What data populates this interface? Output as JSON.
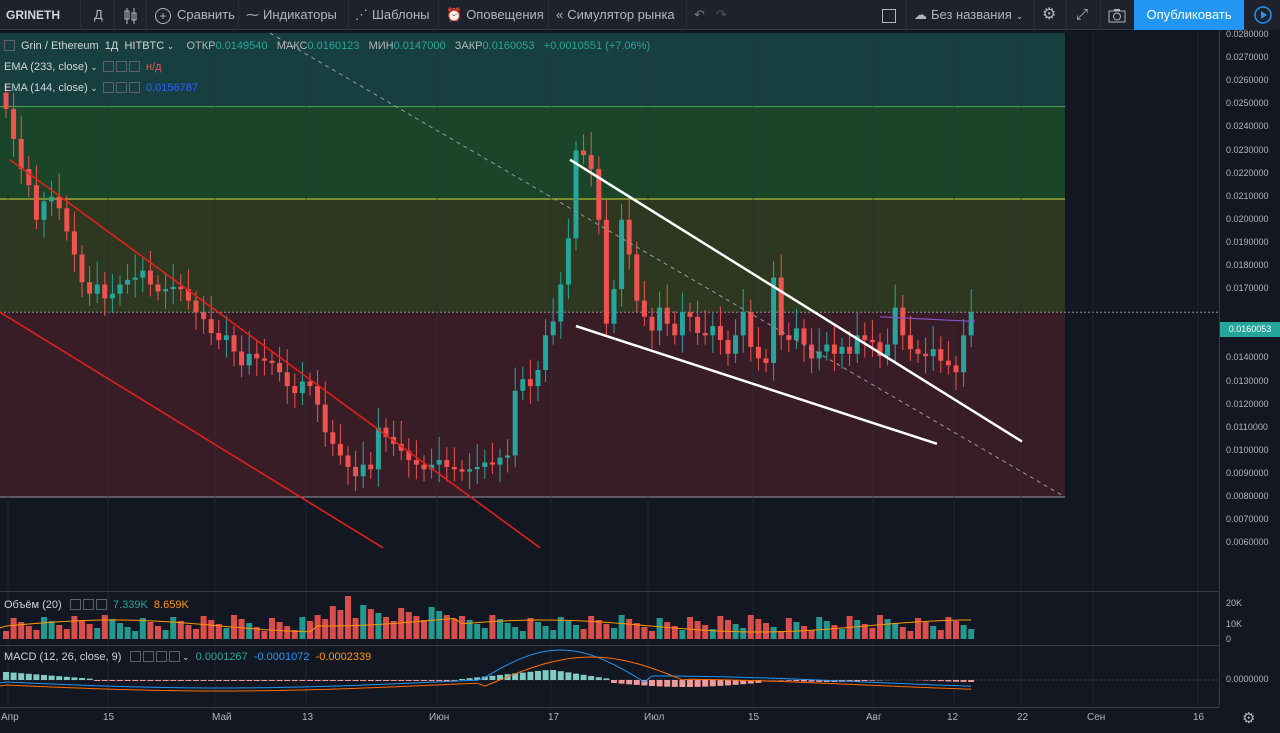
{
  "toolbar": {
    "symbol": "GRINETH",
    "interval": "Д",
    "compare": "Сравнить",
    "indicators": "Индикаторы",
    "templates": "Шаблоны",
    "alerts": "Оповещения",
    "replay": "Симулятор рынка",
    "layout_name": "Без названия",
    "publish": "Опубликовать"
  },
  "legend": {
    "pair": "Grin / Ethereum",
    "tf": "1Д",
    "exchange": "HITBTC",
    "open_label": "ОТКР",
    "open": "0.0149540",
    "high_label": "МАКС",
    "high": "0.0160123",
    "low_label": "МИН",
    "low": "0.0147000",
    "close_label": "ЗАКР",
    "close": "0.0160053",
    "change": "+0.0010551 (+7.06%)",
    "ema1_label": "EMA (233, close)",
    "ema1_value": "н/д",
    "ema2_label": "EMA (144, close)",
    "ema2_value": "0.0156787"
  },
  "volume_legend": {
    "label": "Объём (20)",
    "v1": "7.339K",
    "v2": "8.659K"
  },
  "macd_legend": {
    "label": "MACD (12, 26, close, 9)",
    "v1": "0.0001267",
    "v2": "-0.0001072",
    "v3": "-0.0002339"
  },
  "price_axis": [
    "0.0280000",
    "0.0270000",
    "0.0260000",
    "0.0250000",
    "0.0240000",
    "0.0230000",
    "0.0220000",
    "0.0210000",
    "0.0200000",
    "0.0190000",
    "0.0180000",
    "0.0170000",
    "0.0150000",
    "0.0140000",
    "0.0130000",
    "0.0120000",
    "0.0110000",
    "0.0100000",
    "0.0090000",
    "0.0080000",
    "0.0070000",
    "0.0060000"
  ],
  "last_price": "0.0160053",
  "volume_axis": [
    "20K",
    "10K",
    "0"
  ],
  "macd_axis": [
    "0.0000000"
  ],
  "date_axis": [
    "Апр",
    "15",
    "Май",
    "13",
    "Июн",
    "17",
    "Июл",
    "15",
    "Авг",
    "12",
    "22",
    "Сен",
    "16"
  ],
  "colors": {
    "up": "#26a69a",
    "down": "#ef5350",
    "accent": "#2196f3",
    "bg": "#131722"
  }
}
